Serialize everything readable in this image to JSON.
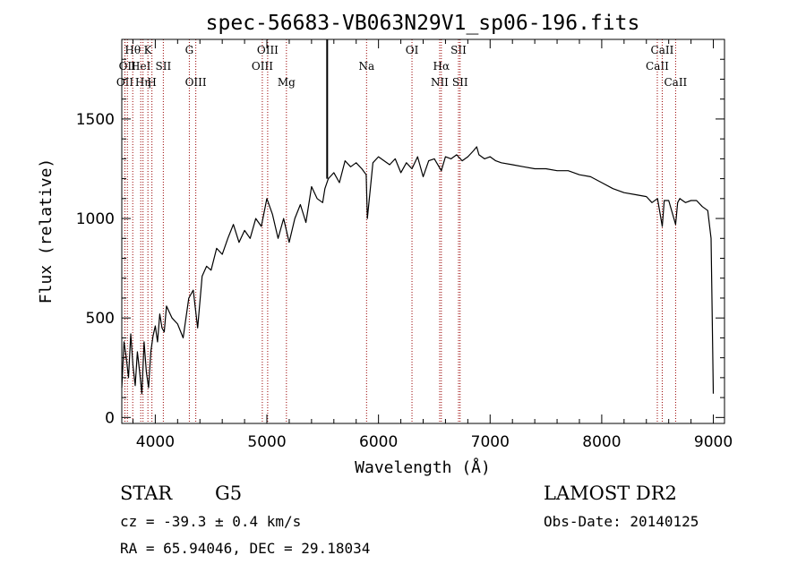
{
  "chart_data": {
    "type": "line",
    "title": "spec-56683-VB063N29V1_sp06-196.fits",
    "xlabel": "Wavelength (Å)",
    "ylabel": "Flux (relative)",
    "xlim": [
      3700,
      9100
    ],
    "ylim": [
      -30,
      1900
    ],
    "x_ticks": [
      4000,
      5000,
      6000,
      7000,
      8000,
      9000
    ],
    "y_ticks": [
      0,
      500,
      1000,
      1500
    ],
    "x_tick_labels": [
      "4000",
      "5000",
      "6000",
      "7000",
      "8000",
      "9000"
    ],
    "y_tick_labels": [
      "0",
      "500",
      "1000",
      "1500"
    ],
    "grid": false,
    "series": [
      {
        "x": [
          3700,
          3720,
          3740,
          3760,
          3780,
          3800,
          3820,
          3840,
          3860,
          3880,
          3900,
          3920,
          3940,
          3960,
          3980,
          4000,
          4020,
          4040,
          4060,
          4080,
          4100,
          4150,
          4200,
          4250,
          4300,
          4340,
          4380,
          4420,
          4460,
          4500,
          4550,
          4600,
          4650,
          4700,
          4750,
          4800,
          4850,
          4900,
          4950,
          5000,
          5050,
          5100,
          5150,
          5200,
          5250,
          5300,
          5350,
          5400,
          5450,
          5500,
          5520,
          5550,
          5600,
          5650,
          5700,
          5750,
          5800,
          5850,
          5890,
          5900,
          5950,
          6000,
          6050,
          6100,
          6150,
          6200,
          6250,
          6300,
          6350,
          6400,
          6450,
          6500,
          6563,
          6600,
          6650,
          6700,
          6750,
          6800,
          6850,
          6880,
          6900,
          6950,
          7000,
          7050,
          7100,
          7200,
          7300,
          7400,
          7500,
          7600,
          7700,
          7800,
          7900,
          8000,
          8100,
          8200,
          8300,
          8400,
          8450,
          8500,
          8542,
          8560,
          8600,
          8662,
          8680,
          8700,
          8750,
          8800,
          8850,
          8900,
          8950,
          8980,
          8990,
          9000
        ],
        "y": [
          150,
          380,
          300,
          200,
          420,
          260,
          160,
          330,
          230,
          120,
          380,
          230,
          150,
          330,
          410,
          460,
          380,
          520,
          450,
          430,
          560,
          500,
          470,
          400,
          600,
          640,
          450,
          710,
          760,
          740,
          850,
          820,
          900,
          970,
          880,
          940,
          900,
          1000,
          960,
          1100,
          1020,
          900,
          1000,
          880,
          1000,
          1070,
          980,
          1160,
          1100,
          1080,
          1150,
          1200,
          1230,
          1180,
          1290,
          1260,
          1280,
          1250,
          1220,
          1000,
          1280,
          1310,
          1290,
          1270,
          1300,
          1230,
          1280,
          1250,
          1310,
          1210,
          1290,
          1300,
          1240,
          1310,
          1300,
          1320,
          1290,
          1310,
          1340,
          1360,
          1320,
          1300,
          1310,
          1290,
          1280,
          1270,
          1260,
          1250,
          1250,
          1240,
          1240,
          1220,
          1210,
          1180,
          1150,
          1130,
          1120,
          1110,
          1080,
          1100,
          960,
          1090,
          1090,
          970,
          1080,
          1100,
          1080,
          1090,
          1090,
          1060,
          1040,
          900,
          500,
          120
        ]
      }
    ],
    "spikes": [
      {
        "x": 5540,
        "y_bottom": 1200,
        "y_top": 1900
      }
    ],
    "line_markers": [
      {
        "x": 3728,
        "label": "OII",
        "row": 2
      },
      {
        "x": 3750,
        "label": "OII",
        "row": 1
      },
      {
        "x": 3798,
        "label": "Hθ",
        "row": 0
      },
      {
        "x": 3870,
        "label": "HeI",
        "row": 1
      },
      {
        "x": 3890,
        "label": "Hη",
        "row": 2
      },
      {
        "x": 3934,
        "label": "K",
        "row": 0
      },
      {
        "x": 3970,
        "label": "H",
        "row": 2
      },
      {
        "x": 4072,
        "label": "SII",
        "row": 1
      },
      {
        "x": 4305,
        "label": "G",
        "row": 0
      },
      {
        "x": 4363,
        "label": "OIII",
        "row": 2
      },
      {
        "x": 4959,
        "label": "OIII",
        "row": 1
      },
      {
        "x": 5007,
        "label": "OIII",
        "row": 0
      },
      {
        "x": 5175,
        "label": "Mg",
        "row": 2
      },
      {
        "x": 5893,
        "label": "Na",
        "row": 1
      },
      {
        "x": 6300,
        "label": "OI",
        "row": 0
      },
      {
        "x": 6548,
        "label": "NII",
        "row": 2
      },
      {
        "x": 6563,
        "label": "Hα",
        "row": 1
      },
      {
        "x": 6717,
        "label": "SII",
        "row": 0
      },
      {
        "x": 6731,
        "label": "SII",
        "row": 2
      },
      {
        "x": 8498,
        "label": "CaII",
        "row": 1
      },
      {
        "x": 8542,
        "label": "CaII",
        "row": 0
      },
      {
        "x": 8662,
        "label": "CaII",
        "row": 2
      }
    ],
    "colors": {
      "spectrum": "#000000",
      "line_markers": "#990000",
      "axes": "#000000"
    }
  },
  "info": {
    "class": "STAR",
    "subclass": "G5",
    "survey": "LAMOST DR2",
    "cz": "cz = -39.3 ± 0.4 km/s",
    "obs_date": "Obs-Date: 20140125",
    "coords": "RA =  65.94046, DEC =  29.18034"
  }
}
